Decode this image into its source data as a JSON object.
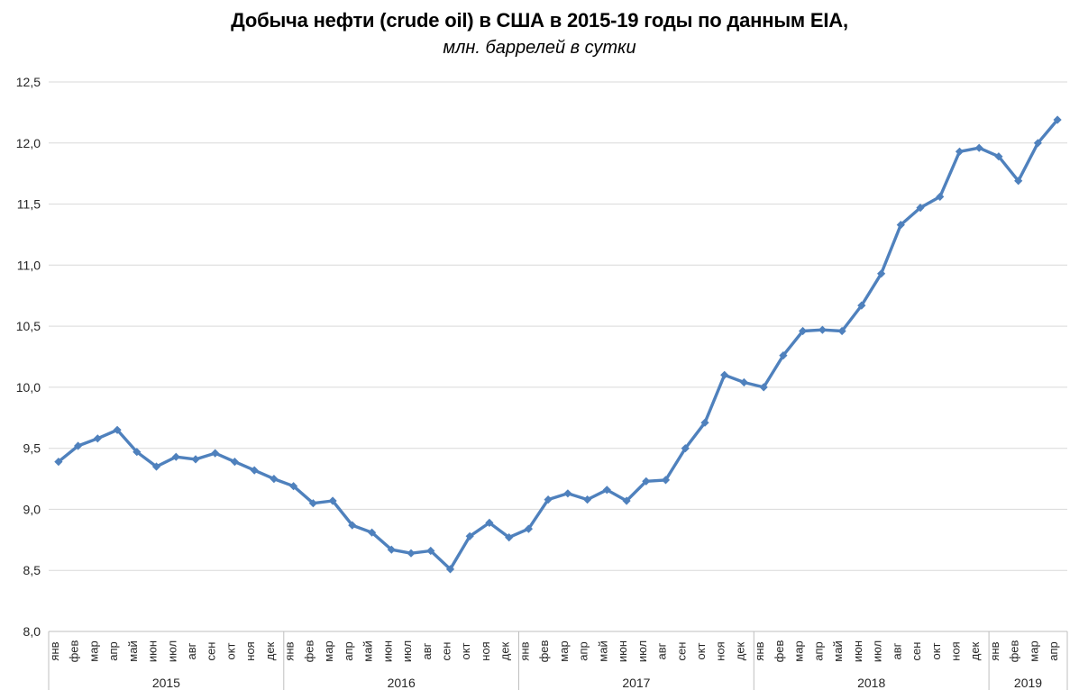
{
  "chart_data": {
    "type": "line",
    "title": "Добыча нефти (crude oil) в США в 2015-19 годы по данным EIA,",
    "subtitle": "млн. баррелей в сутки",
    "xlabel": "",
    "ylabel": "",
    "ylim": [
      8.0,
      12.5
    ],
    "ytick_step": 0.5,
    "ytick_labels": [
      "8,0",
      "8,5",
      "9,0",
      "9,5",
      "10,0",
      "10,5",
      "11,0",
      "11,5",
      "12,0",
      "12,5"
    ],
    "grid": "horizontal",
    "legend": "none",
    "marker": "diamond",
    "colors": {
      "line": "#4F81BD",
      "gridline": "#D9D9D9",
      "axis": "#BFBFBF",
      "label": "#262626",
      "title": "#000000"
    },
    "groups": [
      {
        "year": "2015",
        "months": [
          "янв",
          "фев",
          "мар",
          "апр",
          "май",
          "июн",
          "июл",
          "авг",
          "сен",
          "окт",
          "ноя",
          "дек"
        ],
        "values": [
          9.39,
          9.52,
          9.58,
          9.65,
          9.47,
          9.35,
          9.43,
          9.41,
          9.46,
          9.39,
          9.32,
          9.25
        ]
      },
      {
        "year": "2016",
        "months": [
          "янв",
          "фев",
          "мар",
          "апр",
          "май",
          "июн",
          "июл",
          "авг",
          "сен",
          "окт",
          "ноя",
          "дек"
        ],
        "values": [
          9.19,
          9.05,
          9.07,
          8.87,
          8.81,
          8.67,
          8.64,
          8.66,
          8.51,
          8.78,
          8.89,
          8.77
        ]
      },
      {
        "year": "2017",
        "months": [
          "янв",
          "фев",
          "мар",
          "апр",
          "май",
          "июн",
          "июл",
          "авг",
          "сен",
          "окт",
          "ноя",
          "дек"
        ],
        "values": [
          8.84,
          9.08,
          9.13,
          9.08,
          9.16,
          9.07,
          9.23,
          9.24,
          9.5,
          9.71,
          10.1,
          10.04
        ]
      },
      {
        "year": "2018",
        "months": [
          "янв",
          "фев",
          "мар",
          "апр",
          "май",
          "июн",
          "июл",
          "авг",
          "сен",
          "окт",
          "ноя",
          "дек"
        ],
        "values": [
          10.0,
          10.26,
          10.46,
          10.47,
          10.46,
          10.67,
          10.93,
          11.33,
          11.47,
          11.56,
          11.93,
          11.96
        ]
      },
      {
        "year": "2019",
        "months": [
          "янв",
          "фев",
          "мар",
          "апр"
        ],
        "values": [
          11.89,
          11.69,
          12.0,
          12.19
        ]
      }
    ]
  }
}
